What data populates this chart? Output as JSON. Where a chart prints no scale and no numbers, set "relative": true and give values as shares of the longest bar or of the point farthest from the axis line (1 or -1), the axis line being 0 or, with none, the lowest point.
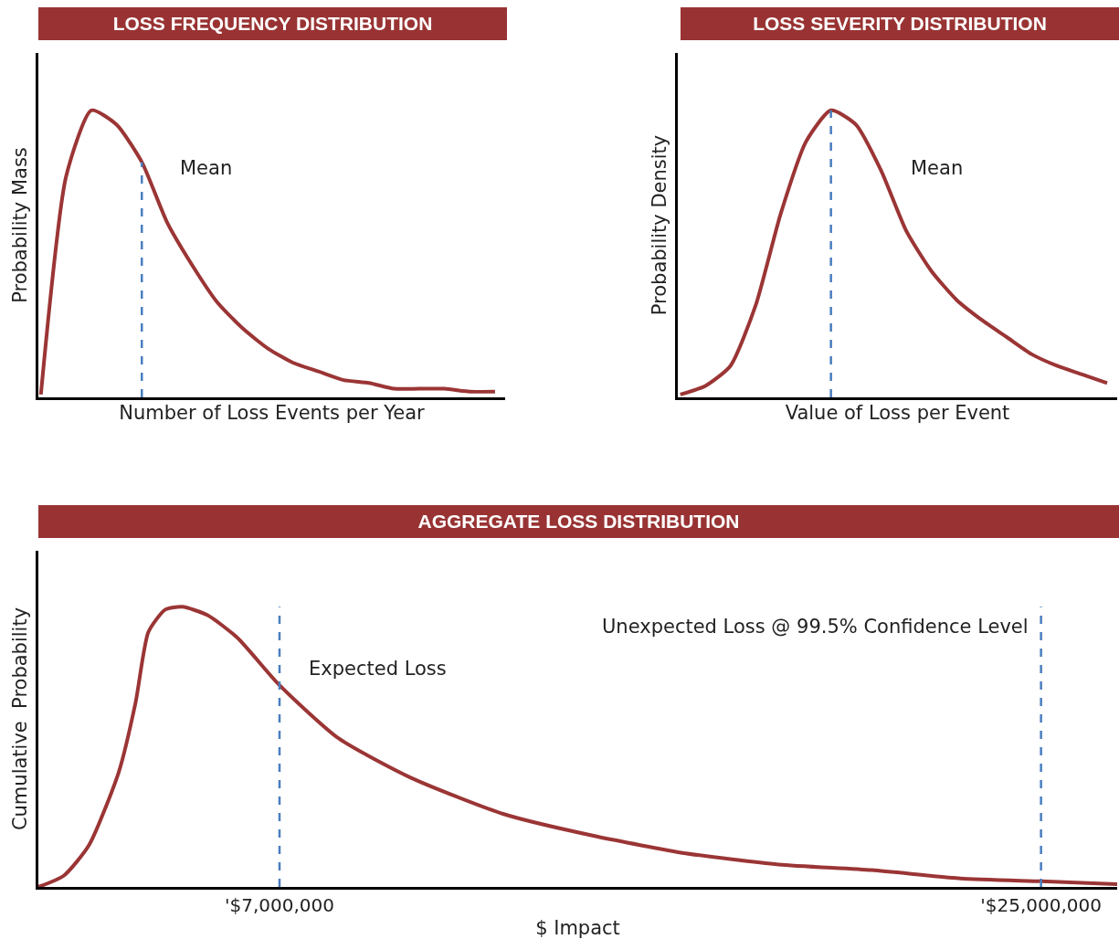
{
  "chart_data": [
    {
      "type": "line",
      "title": "LOSS FREQUENCY DISTRIBUTION",
      "xlabel": "Number of Loss Events per Year",
      "ylabel": "Probability Mass",
      "relative": true,
      "tick_labels": false,
      "categories": [
        null,
        null,
        null,
        null,
        null,
        null,
        null,
        null,
        null,
        null,
        null,
        null,
        null,
        null,
        null,
        null,
        null,
        null,
        null
      ],
      "series": [
        {
          "color": "#9b3535",
          "values": [
            0.01,
            0.77,
            1,
            0.95,
            0.82,
            0.61,
            0.46,
            0.33,
            0.24,
            0.17,
            0.12,
            0.09,
            0.06,
            0.05,
            0.03,
            0.03,
            0.03,
            0.02,
            0.02
          ]
        }
      ],
      "annotations": [
        "Mean"
      ]
    },
    {
      "type": "line",
      "title": "LOSS SEVERITY DISTRIBUTION",
      "xlabel": "Value of Loss per Event",
      "ylabel": "Probability Density",
      "relative": true,
      "tick_labels": false,
      "categories": [
        null,
        null,
        null,
        null,
        null,
        null,
        null,
        null,
        null,
        null,
        null,
        null,
        null,
        null,
        null,
        null,
        null,
        null
      ],
      "series": [
        {
          "color": "#9b3535",
          "values": [
            0.01,
            0.04,
            0.11,
            0.32,
            0.64,
            0.89,
            1,
            0.95,
            0.79,
            0.58,
            0.44,
            0.34,
            0.27,
            0.21,
            0.15,
            0.11,
            0.08,
            0.05
          ]
        }
      ],
      "annotations": [
        "Mean"
      ]
    },
    {
      "type": "line",
      "title": "AGGREGATE LOSS DISTRIBUTION",
      "xlabel": "$ Impact",
      "ylabel": "Cumulative  Probability",
      "relative": true,
      "tick_labels": "x",
      "xlim": [
        1300000,
        26800000
      ],
      "xticks": [
        {
          "value": 7000000,
          "label": "'$7,000,000"
        },
        {
          "value": 25000000,
          "label": "'$25,000,000"
        }
      ],
      "series": [
        {
          "color": "#9b3535",
          "x": [
            1300000,
            1900000,
            2500000,
            3200000,
            3600000,
            3900000,
            4300000,
            4700000,
            5300000,
            6000000,
            7000000,
            8400000,
            10100000,
            12300000,
            14500000,
            16600000,
            18800000,
            21000000,
            23100000,
            25000000,
            26800000
          ],
          "values": [
            0,
            0.04,
            0.15,
            0.41,
            0.66,
            0.91,
            0.99,
            1,
            0.97,
            0.89,
            0.72,
            0.53,
            0.39,
            0.26,
            0.18,
            0.12,
            0.08,
            0.06,
            0.03,
            0.02,
            0.01
          ]
        }
      ],
      "ref_lines": [
        {
          "axis": "x",
          "value": 7000000,
          "label": "Expected Loss",
          "color": "#4a7ebf",
          "line_style": "dashed"
        },
        {
          "axis": "x",
          "value": 25000000,
          "label": "Unexpected Loss @ 99.5% Confidence Level",
          "color": "#4a7ebf",
          "line_style": "dashed"
        }
      ]
    }
  ]
}
